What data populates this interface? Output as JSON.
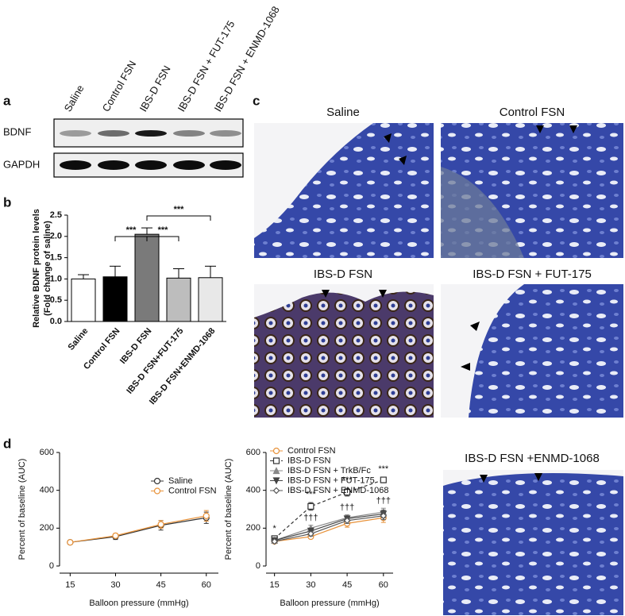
{
  "panel_labels": [
    "a",
    "b",
    "c",
    "d"
  ],
  "blot": {
    "lanes": [
      "Saline",
      "Control FSN",
      "IBS-D FSN",
      "IBS-D FSN + FUT-175",
      "IBS-D FSN + ENMD-1068"
    ],
    "rows": [
      "BDNF",
      "GAPDH"
    ]
  },
  "histology": {
    "panels": [
      "Saline",
      "Control FSN",
      "IBS-D FSN",
      "IBS-D FSN + FUT-175",
      "IBS-D FSN +ENMD-1068"
    ]
  },
  "chart_data": [
    {
      "type": "bar",
      "ylabel": "Relative BDNF protein levels",
      "ylabel2": "(Fold change of saline)",
      "categories": [
        "Saline",
        "Control FSN",
        "IBS-D FSN",
        "IBS-D FSN+FUT-175",
        "IBS-D FSN+ENMD-1068"
      ],
      "values": [
        1.0,
        1.05,
        2.05,
        1.02,
        1.03
      ],
      "errors": [
        0.1,
        0.25,
        0.15,
        0.22,
        0.27
      ],
      "colors": [
        "#ffffff",
        "#000000",
        "#7a7a7a",
        "#bdbdbd",
        "#e8e8e8"
      ],
      "ylim": [
        0,
        2.5
      ],
      "yticks": [
        {
          "value": 0,
          "label": "0.0"
        },
        0.5,
        {
          "value": 1,
          "label": "1.0"
        },
        1.5,
        {
          "value": 2,
          "label": "2.0"
        },
        2.5
      ],
      "annotations": [
        "***",
        "***",
        "***"
      ]
    },
    {
      "type": "line",
      "xlabel": "Balloon pressure (mmHg)",
      "ylabel": "Percent of baseline (AUC)",
      "x": [
        15,
        30,
        45,
        60
      ],
      "xlim": [
        11.5,
        64
      ],
      "xticks": [
        15,
        30,
        45,
        60
      ],
      "ylim": [
        0,
        600
      ],
      "yticks": [
        0,
        200,
        400,
        600
      ],
      "legend": "upper right",
      "series": [
        {
          "name": "Saline",
          "color": "#333333",
          "marker": "circle",
          "linestyle": "solid",
          "values": [
            125,
            155,
            215,
            255
          ],
          "errors": [
            5,
            15,
            25,
            30
          ]
        },
        {
          "name": "Control FSN",
          "color": "#e8923a",
          "marker": "circle",
          "linestyle": "solid",
          "values": [
            125,
            160,
            220,
            265
          ],
          "errors": [
            5,
            12,
            20,
            28
          ]
        }
      ]
    },
    {
      "type": "line",
      "xlabel": "Balloon pressure (mmHg)",
      "ylabel": "Percent of baseline (AUC)",
      "x": [
        15,
        30,
        45,
        60
      ],
      "xlim": [
        11.5,
        64
      ],
      "xticks": [
        15,
        30,
        45,
        60
      ],
      "ylim": [
        0,
        600
      ],
      "yticks": [
        0,
        200,
        400,
        600
      ],
      "legend": "upper left",
      "significance": [
        "*",
        "***",
        "***",
        "***"
      ],
      "daggers": [
        null,
        "†††",
        "†††",
        "†††"
      ],
      "series": [
        {
          "name": "Control FSN",
          "color": "#e8923a",
          "marker": "circle",
          "linestyle": "solid",
          "values": [
            130,
            155,
            225,
            255
          ],
          "errors": [
            8,
            10,
            20,
            25
          ]
        },
        {
          "name": "IBS-D FSN",
          "color": "#333333",
          "marker": "square",
          "linestyle": "dashed",
          "values": [
            145,
            315,
            390,
            455
          ],
          "errors": [
            10,
            20,
            20,
            15
          ]
        },
        {
          "name": "IBS-D FSN + TrkB/Fc",
          "color": "#888888",
          "marker": "triangle",
          "linestyle": "solid",
          "values": [
            135,
            200,
            255,
            285
          ],
          "errors": [
            8,
            15,
            15,
            20
          ]
        },
        {
          "name": "IBS-D FSN + FUT-175",
          "color": "#444444",
          "marker": "triangle-down",
          "linestyle": "solid",
          "values": [
            135,
            185,
            250,
            275
          ],
          "errors": [
            8,
            12,
            15,
            20
          ]
        },
        {
          "name": "IBS-D FSN + ENMD-1068",
          "color": "#555555",
          "marker": "diamond",
          "linestyle": "solid",
          "values": [
            130,
            170,
            240,
            265
          ],
          "errors": [
            8,
            12,
            15,
            20
          ]
        }
      ]
    }
  ]
}
